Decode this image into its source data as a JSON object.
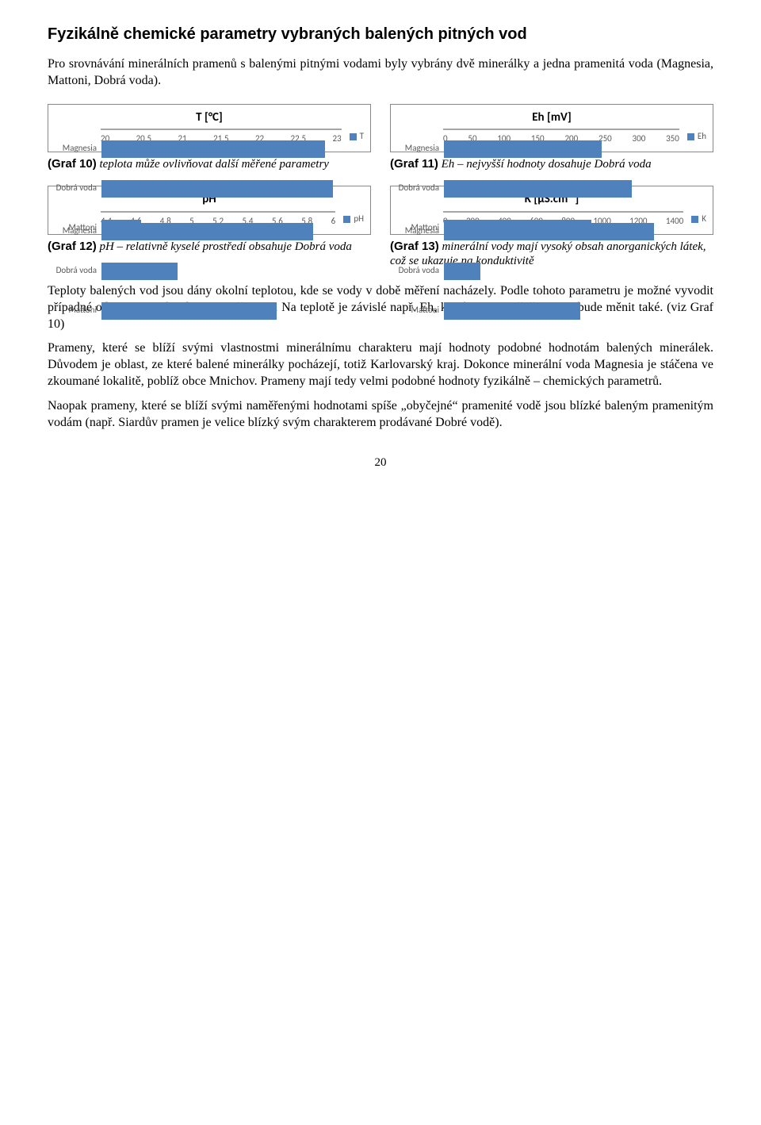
{
  "heading": "Fyzikálně chemické parametry vybraných balených pitných vod",
  "intro": "Pro srovnávání minerálních pramenů s balenými pitnými vodami byly vybrány dvě minerálky a jedna pramenitá voda (Magnesia, Mattoni, Dobrá voda).",
  "categories": [
    "Magnesia",
    "Dobrá voda",
    "Mattoni"
  ],
  "bar_color": "#4f81bd",
  "grid_color": "#d9d9d9",
  "axis_color": "#a6a6a6",
  "tick_color": "#595959",
  "charts": {
    "t": {
      "title": "T [°C]",
      "legend": "T",
      "xmin": 20,
      "xmax": 23,
      "ticks": [
        "20",
        "20,5",
        "21",
        "21,5",
        "22",
        "22,5",
        "23"
      ],
      "values": [
        22.8,
        22.9,
        20.5
      ]
    },
    "eh": {
      "title": "Eh [mV]",
      "legend": "Eh",
      "xmin": 0,
      "xmax": 350,
      "ticks": [
        "0",
        "50",
        "100",
        "150",
        "200",
        "250",
        "300",
        "350"
      ],
      "values": [
        235,
        280,
        220
      ]
    },
    "ph": {
      "title": "pH",
      "legend": "pH",
      "xmin": 4.4,
      "xmax": 6,
      "ticks": [
        "4,4",
        "4,6",
        "4,8",
        "5",
        "5,2",
        "5,4",
        "5,6",
        "5,8",
        "6"
      ],
      "values": [
        5.85,
        4.92,
        5.6
      ]
    },
    "k": {
      "title": "K [μS.cm⁻¹]",
      "legend": "K",
      "xmin": 0,
      "xmax": 1400,
      "ticks": [
        "0",
        "200",
        "400",
        "600",
        "800",
        "1000",
        "1200",
        "1400"
      ],
      "values": [
        1230,
        215,
        800
      ]
    }
  },
  "captions": {
    "t": {
      "bold": "(Graf 10)",
      "rest": " teplota může ovlivňovat další měřené parametry"
    },
    "eh": {
      "bold": "(Graf 11)",
      "rest": " Eh – nejvyšší hodnoty dosahuje Dobrá voda"
    },
    "ph": {
      "bold": "(Graf 12)",
      "rest": " pH – relativně kyselé prostředí obsahuje Dobrá voda"
    },
    "k": {
      "bold": "(Graf 13)",
      "rest": " minerální vody mají vysoký obsah anorganických látek, což se ukazuje na konduktivitě"
    }
  },
  "paragraphs": [
    "Teploty balených vod jsou dány okolní teplotou, kde se vody v době měření nacházely. Podle tohoto parametru je možné vyvodit případné odchylky v následujících měřeních. Na teplotě je závislé např. Eh, které se při změně teploty bude měnit také. (viz Graf 10)",
    "Prameny, které se blíží svými vlastnostmi minerálnímu charakteru mají hodnoty podobné hodnotám balených minerálek. Důvodem je oblast, ze které balené minerálky pocházejí, totiž Karlovarský kraj. Dokonce minerální voda Magnesia je stáčena ve zkoumané lokalitě, poblíž obce Mnichov. Prameny mají tedy velmi podobné hodnoty fyzikálně – chemických parametrů.",
    "Naopak prameny, které se blíží svými naměřenými hodnotami spíše „obyčejné“ pramenité vodě jsou blízké baleným pramenitým vodám (např. Siardův pramen je velice blízký svým charakterem prodávané Dobré vodě)."
  ],
  "page_number": "20"
}
